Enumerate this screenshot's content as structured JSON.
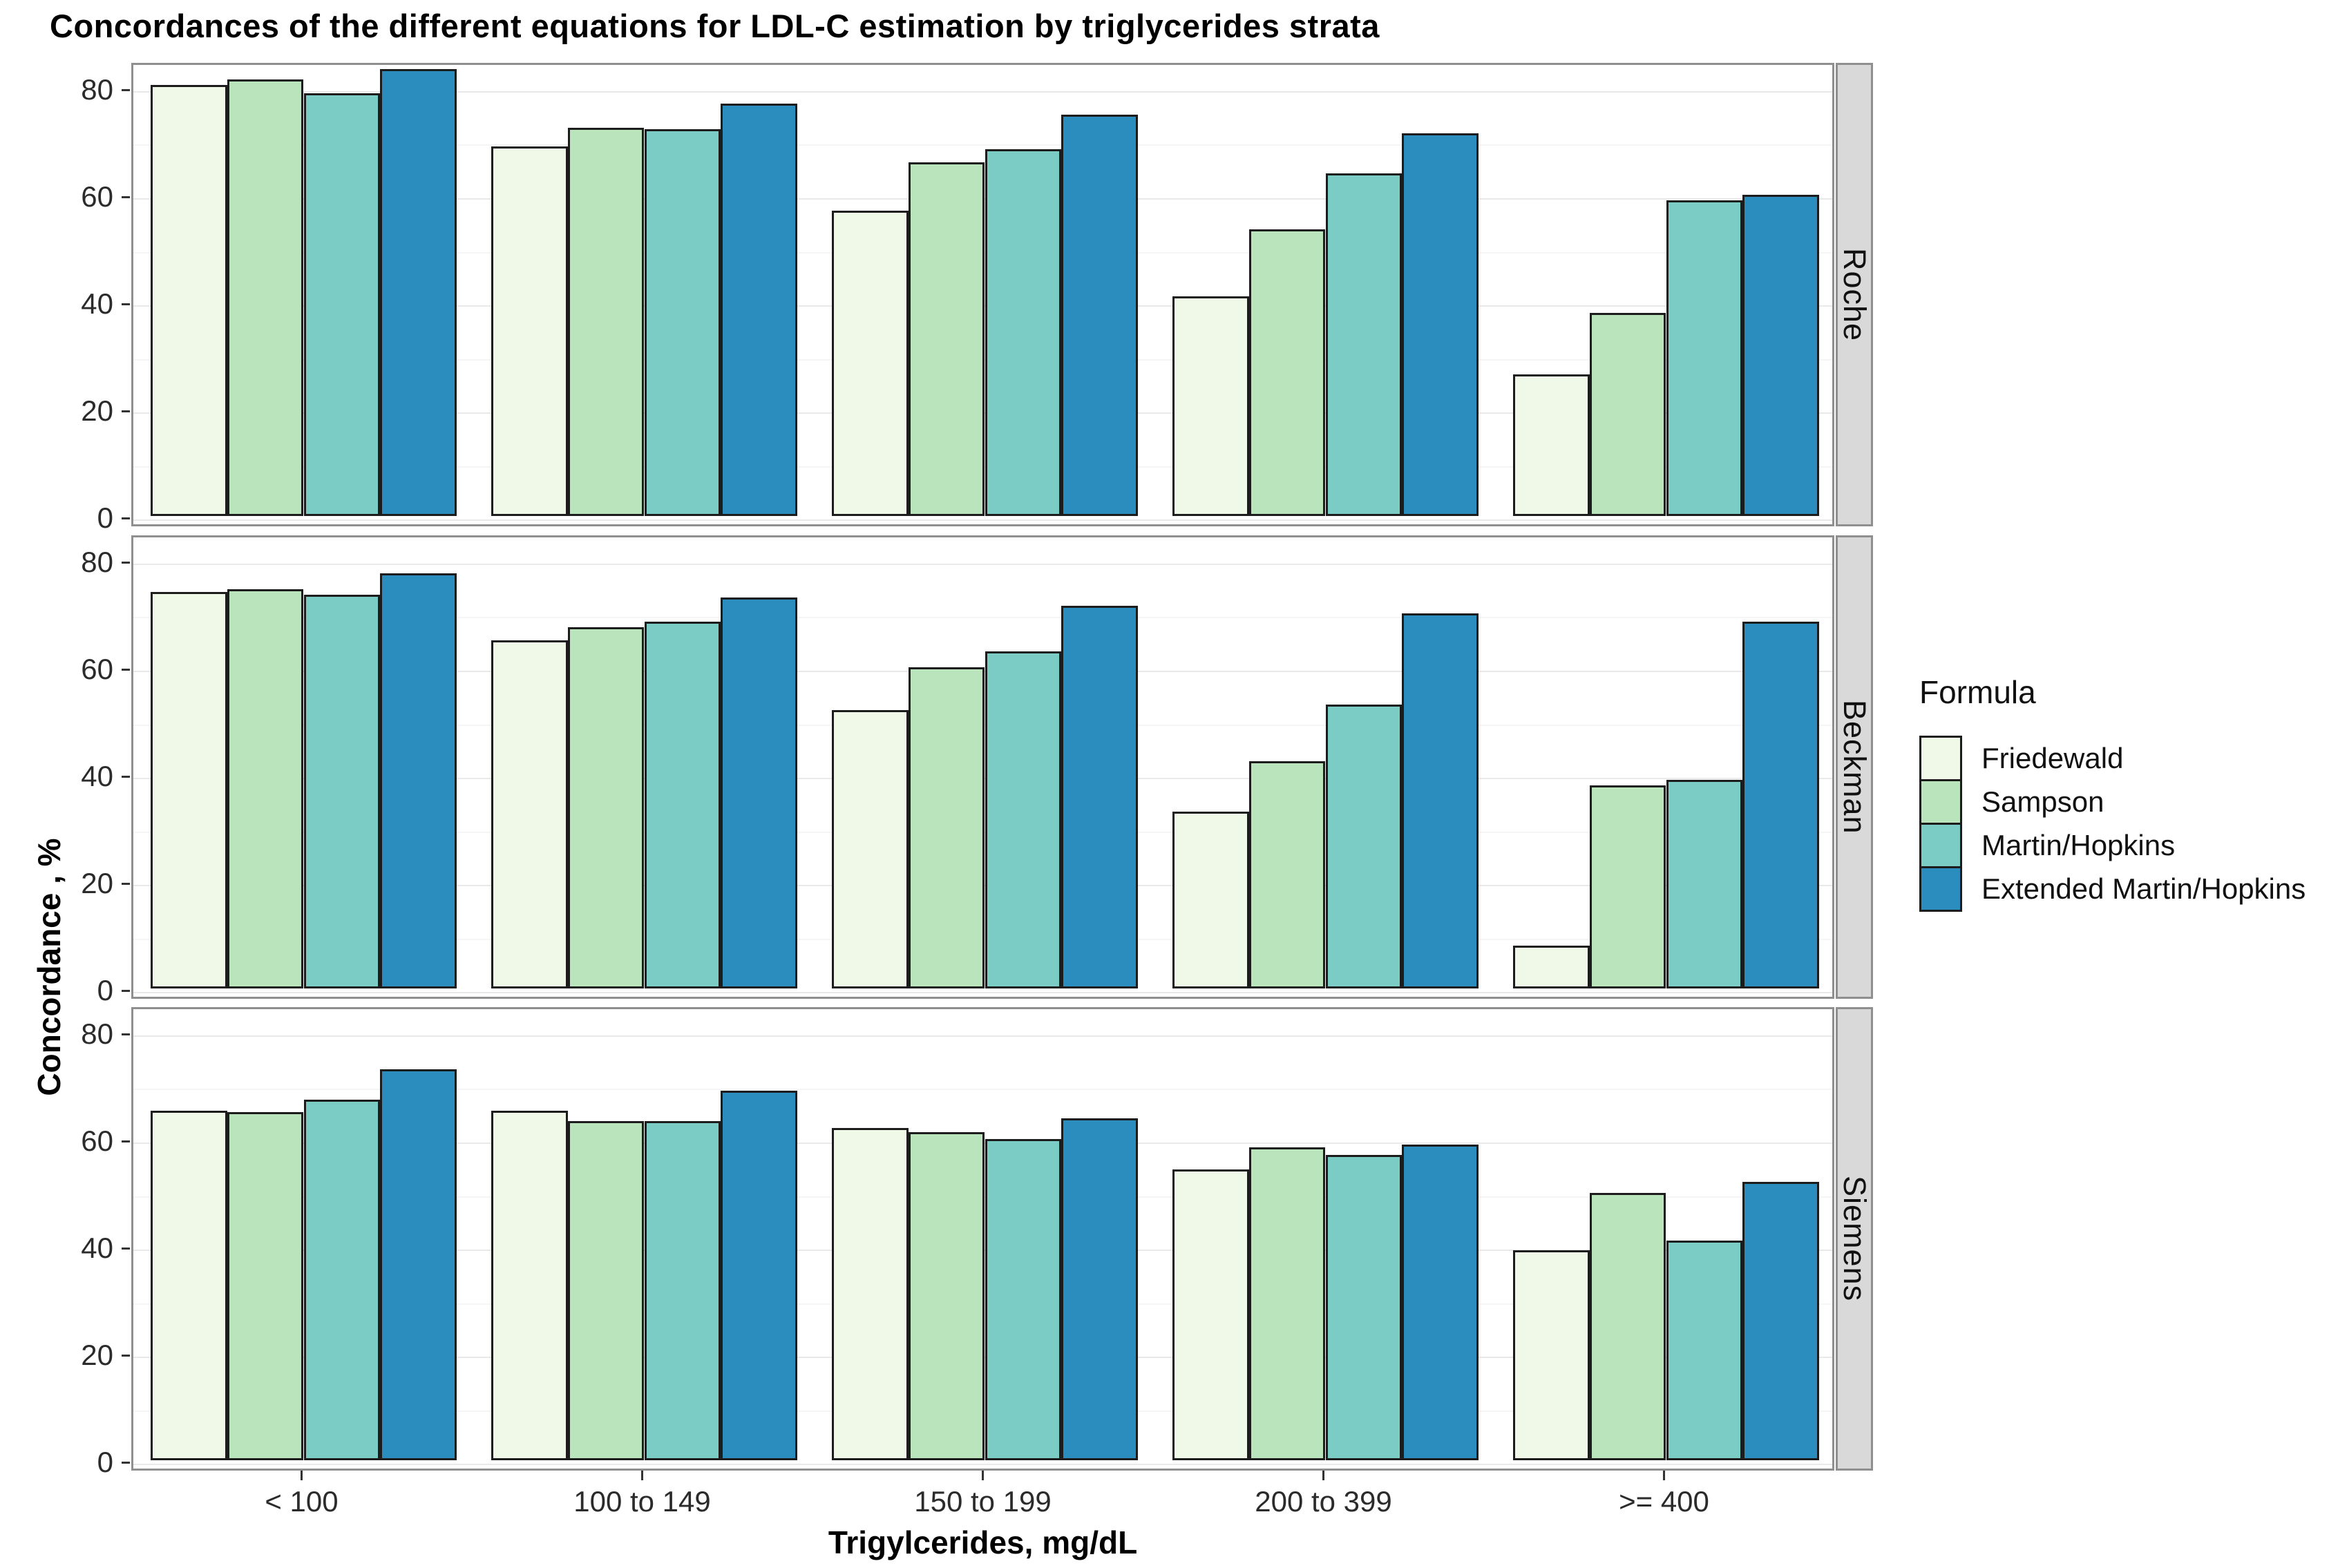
{
  "chart_data": {
    "type": "bar",
    "title": "Concordances of the different equations for LDL-C estimation by triglycerides strata",
    "xlabel": "Trigylcerides, mg/dL",
    "ylabel": "Concordance , %",
    "categories": [
      "< 100",
      "100 to 149",
      "150 to 199",
      "200 to 399",
      ">= 400"
    ],
    "y_ticks": [
      0,
      20,
      40,
      60,
      80
    ],
    "y_minor_ticks": [
      10,
      30,
      50,
      70
    ],
    "ylim": [
      -1.5,
      85
    ],
    "grid": true,
    "legend": {
      "title": "Formula",
      "position": "right"
    },
    "series": [
      {
        "name": "Friedewald",
        "color": "#f0f9e8"
      },
      {
        "name": "Sampson",
        "color": "#bae4bc"
      },
      {
        "name": "Martin/Hopkins",
        "color": "#7bccc4"
      },
      {
        "name": "Extended Martin/Hopkins",
        "color": "#2b8cbe"
      }
    ],
    "facets": [
      {
        "label": "Roche",
        "series_values": [
          [
            80.5,
            69,
            57,
            41,
            26.5
          ],
          [
            81.5,
            72.5,
            66,
            53.5,
            38
          ],
          [
            79,
            72.3,
            68.5,
            64,
            59
          ],
          [
            83.5,
            77,
            75,
            71.5,
            60
          ]
        ]
      },
      {
        "label": "Beckman",
        "series_values": [
          [
            74,
            65,
            52,
            33,
            8
          ],
          [
            74.5,
            67.5,
            60,
            42.5,
            38
          ],
          [
            73.5,
            68.5,
            63,
            53,
            39
          ],
          [
            77.5,
            73,
            71.5,
            70,
            68.5
          ]
        ]
      },
      {
        "label": "Siemens",
        "series_values": [
          [
            65.3,
            65.3,
            62,
            54.3,
            39.3
          ],
          [
            65,
            63.3,
            61.3,
            58.5,
            50
          ],
          [
            67.3,
            63.3,
            60,
            57,
            41
          ],
          [
            73,
            69,
            63.8,
            59,
            52
          ]
        ]
      }
    ],
    "style_colors": {
      "bar_border": "#1c1c1c",
      "strip_background": "#d9d9d9",
      "panel_border": "#8f8f8f",
      "major_grid": "#e9e9e9",
      "minor_grid": "#f5f5f5",
      "tick_text": "#2b2b2b"
    }
  }
}
